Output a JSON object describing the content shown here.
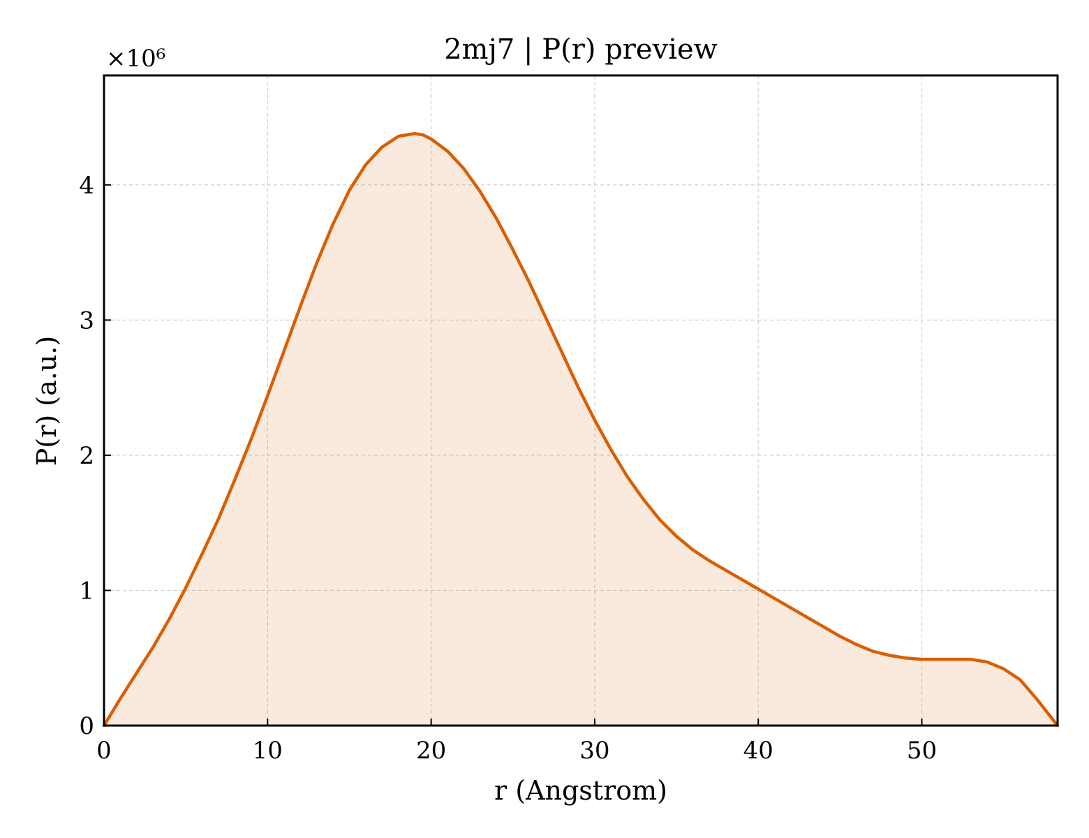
{
  "chart_data": {
    "type": "area",
    "title": "2mj7 | P(r) preview",
    "xlabel": "r (Angstrom)",
    "ylabel": "P(r) (a.u.)",
    "y_multiplier_label": "×10⁶",
    "y_multiplier": 1000000,
    "xlim": [
      0,
      58.3
    ],
    "ylim": [
      0,
      4.81
    ],
    "x_ticks": [
      0,
      10,
      20,
      30,
      40,
      50
    ],
    "x_tick_labels": [
      "0",
      "10",
      "20",
      "30",
      "40",
      "50"
    ],
    "y_ticks": [
      0,
      1,
      2,
      3,
      4
    ],
    "y_tick_labels": [
      "0",
      "1",
      "2",
      "3",
      "4"
    ],
    "grid": true,
    "series": [
      {
        "color": "#d95f02",
        "fill_color": "#d95f02",
        "fill_opacity": 0.13,
        "x": [
          0,
          1,
          2,
          3,
          4,
          5,
          6,
          7,
          8,
          9,
          10,
          11,
          12,
          13,
          14,
          15,
          16,
          17,
          18,
          19,
          19.5,
          20,
          21,
          22,
          23,
          24,
          25,
          26,
          27,
          28,
          29,
          30,
          31,
          32,
          33,
          34,
          35,
          36,
          37,
          38,
          39,
          40,
          41,
          42,
          43,
          44,
          45,
          46,
          47,
          48,
          49,
          50,
          51,
          52,
          53,
          54,
          55,
          56,
          57,
          58.3
        ],
        "y": [
          0,
          0.2,
          0.39,
          0.58,
          0.79,
          1.02,
          1.27,
          1.53,
          1.82,
          2.12,
          2.44,
          2.77,
          3.1,
          3.42,
          3.71,
          3.96,
          4.15,
          4.28,
          4.36,
          4.38,
          4.37,
          4.34,
          4.25,
          4.12,
          3.95,
          3.75,
          3.52,
          3.28,
          3.02,
          2.76,
          2.5,
          2.26,
          2.04,
          1.84,
          1.67,
          1.52,
          1.4,
          1.3,
          1.22,
          1.15,
          1.08,
          1.01,
          0.94,
          0.87,
          0.8,
          0.73,
          0.66,
          0.6,
          0.55,
          0.52,
          0.5,
          0.49,
          0.49,
          0.49,
          0.49,
          0.47,
          0.42,
          0.34,
          0.2,
          0
        ]
      }
    ]
  }
}
